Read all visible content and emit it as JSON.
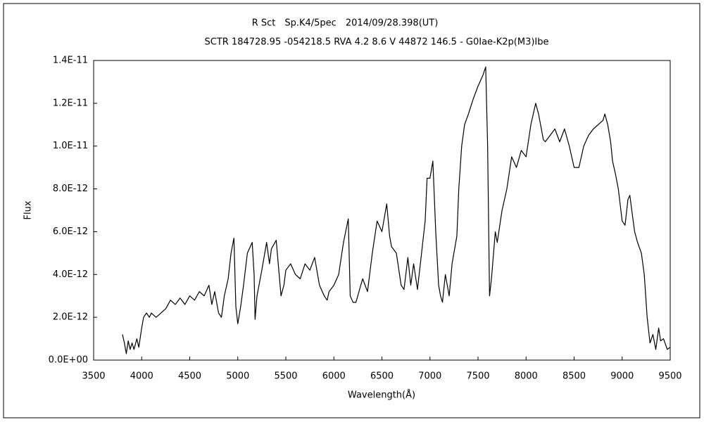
{
  "chart_data": {
    "type": "line",
    "title": "R Sct　Sp.K4/5pec　2014/09/28.398(UT)",
    "subtitle": "SCTR 184728.95 -054218.5 RVA 4.2 8.6 V 44872 146.5 - G0Iae-K2p(M3)Ibe",
    "xlabel": "Wavelength(Å)",
    "ylabel": "Flux",
    "color": "#000000",
    "xlim": [
      3500,
      9500
    ],
    "ylim": [
      0,
      1.4e-11
    ],
    "xticks": [
      3500,
      4000,
      4500,
      5000,
      5500,
      6000,
      6500,
      7000,
      7500,
      8000,
      8500,
      9000,
      9500
    ],
    "yticks": [
      {
        "value": 0,
        "label": "0.0E+00"
      },
      {
        "value": 2e-12,
        "label": "2.0E-12"
      },
      {
        "value": 4e-12,
        "label": "4.0E-12"
      },
      {
        "value": 6e-12,
        "label": "6.0E-12"
      },
      {
        "value": 8e-12,
        "label": "8.0E-12"
      },
      {
        "value": 1e-11,
        "label": "1.0E-11"
      },
      {
        "value": 1.2e-11,
        "label": "1.2E-11"
      },
      {
        "value": 1.4e-11,
        "label": "1.4E-11"
      }
    ],
    "x": [
      3800,
      3820,
      3840,
      3860,
      3880,
      3900,
      3920,
      3950,
      3970,
      4000,
      4020,
      4050,
      4080,
      4100,
      4150,
      4200,
      4250,
      4300,
      4350,
      4400,
      4450,
      4500,
      4550,
      4600,
      4650,
      4700,
      4730,
      4760,
      4800,
      4830,
      4860,
      4900,
      4930,
      4960,
      4980,
      5000,
      5030,
      5060,
      5100,
      5130,
      5150,
      5170,
      5180,
      5200,
      5250,
      5300,
      5330,
      5350,
      5400,
      5450,
      5480,
      5500,
      5550,
      5600,
      5650,
      5700,
      5750,
      5800,
      5850,
      5900,
      5930,
      5950,
      6000,
      6050,
      6100,
      6150,
      6170,
      6200,
      6230,
      6280,
      6300,
      6350,
      6400,
      6450,
      6500,
      6550,
      6580,
      6600,
      6650,
      6700,
      6730,
      6770,
      6800,
      6830,
      6870,
      6900,
      6950,
      6970,
      7000,
      7030,
      7060,
      7090,
      7110,
      7130,
      7160,
      7200,
      7230,
      7280,
      7300,
      7330,
      7360,
      7400,
      7450,
      7500,
      7550,
      7580,
      7600,
      7620,
      7640,
      7680,
      7700,
      7750,
      7800,
      7850,
      7900,
      7950,
      8000,
      8050,
      8100,
      8130,
      8180,
      8200,
      8250,
      8300,
      8350,
      8400,
      8450,
      8500,
      8550,
      8600,
      8650,
      8700,
      8750,
      8800,
      8820,
      8850,
      8880,
      8900,
      8930,
      8960,
      9000,
      9030,
      9060,
      9080,
      9100,
      9130,
      9160,
      9200,
      9230,
      9260,
      9290,
      9320,
      9350,
      9380,
      9400,
      9430,
      9470,
      9500
    ],
    "values": [
      1.2e-12,
      8e-13,
      3e-13,
      9e-13,
      5e-13,
      8e-13,
      5e-13,
      1e-12,
      6e-13,
      1.5e-12,
      2e-12,
      2.2e-12,
      2e-12,
      2.2e-12,
      2e-12,
      2.2e-12,
      2.4e-12,
      2.8e-12,
      2.6e-12,
      2.9e-12,
      2.6e-12,
      3e-12,
      2.8e-12,
      3.2e-12,
      3e-12,
      3.5e-12,
      2.6e-12,
      3.2e-12,
      2.2e-12,
      2e-12,
      3e-12,
      3.8e-12,
      5e-12,
      5.7e-12,
      2.5e-12,
      1.7e-12,
      2.5e-12,
      3.5e-12,
      5e-12,
      5.3e-12,
      5.5e-12,
      4e-12,
      1.9e-12,
      3e-12,
      4.2e-12,
      5.5e-12,
      4.5e-12,
      5.2e-12,
      5.6e-12,
      3e-12,
      3.5e-12,
      4.2e-12,
      4.5e-12,
      4e-12,
      3.8e-12,
      4.5e-12,
      4.2e-12,
      4.8e-12,
      3.5e-12,
      3e-12,
      2.8e-12,
      3.2e-12,
      3.5e-12,
      4e-12,
      5.5e-12,
      6.6e-12,
      3e-12,
      2.7e-12,
      2.7e-12,
      3.5e-12,
      3.8e-12,
      3.2e-12,
      5e-12,
      6.5e-12,
      6e-12,
      7.3e-12,
      5.8e-12,
      5.3e-12,
      5e-12,
      3.5e-12,
      3.3e-12,
      4.8e-12,
      3.5e-12,
      4.5e-12,
      3.3e-12,
      4.5e-12,
      6.5e-12,
      8.5e-12,
      8.5e-12,
      9.3e-12,
      6e-12,
      3.5e-12,
      3e-12,
      2.7e-12,
      4e-12,
      3e-12,
      4.5e-12,
      5.8e-12,
      8e-12,
      1e-11,
      1.1e-11,
      1.15e-11,
      1.22e-11,
      1.28e-11,
      1.33e-11,
      1.37e-11,
      1e-11,
      3e-12,
      3.8e-12,
      6e-12,
      5.5e-12,
      7e-12,
      8e-12,
      9.5e-12,
      9e-12,
      9.8e-12,
      9.5e-12,
      1.1e-11,
      1.2e-11,
      1.15e-11,
      1.03e-11,
      1.02e-11,
      1.05e-11,
      1.08e-11,
      1.02e-11,
      1.08e-11,
      1e-11,
      9e-12,
      9e-12,
      1e-11,
      1.05e-11,
      1.08e-11,
      1.1e-11,
      1.12e-11,
      1.15e-11,
      1.1e-11,
      1.02e-11,
      9.3e-12,
      8.7e-12,
      8e-12,
      6.5e-12,
      6.3e-12,
      7.5e-12,
      7.7e-12,
      7e-12,
      6e-12,
      5.5e-12,
      5e-12,
      4e-12,
      2e-12,
      8e-13,
      1.2e-12,
      5e-13,
      1.5e-12,
      9e-13,
      1e-12,
      5e-13,
      6e-13
    ]
  }
}
